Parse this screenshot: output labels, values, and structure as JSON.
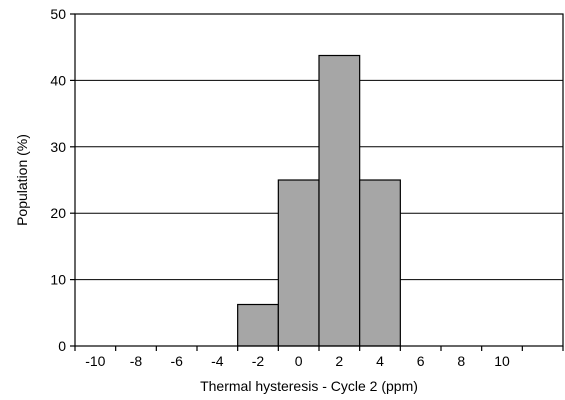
{
  "chart_data": {
    "type": "bar",
    "title": "",
    "xlabel": "Thermal hysteresis - Cycle 2 (ppm)",
    "ylabel": "Population (%)",
    "ylim": [
      0,
      50
    ],
    "xlim": [
      -11,
      13
    ],
    "y_ticks": [
      0,
      10,
      20,
      30,
      40,
      50
    ],
    "x_ticks": [
      -10,
      -8,
      -6,
      -4,
      -2,
      0,
      2,
      4,
      6,
      8,
      10
    ],
    "bin_width": 2,
    "bins": [
      {
        "center": -2,
        "value": 6.25
      },
      {
        "center": 0,
        "value": 25
      },
      {
        "center": 2,
        "value": 43.75
      },
      {
        "center": 4,
        "value": 25
      }
    ],
    "grid": {
      "horizontal": true,
      "vertical": false
    },
    "bar_color": "#a6a6a6",
    "bar_edge_color": "#000000"
  }
}
